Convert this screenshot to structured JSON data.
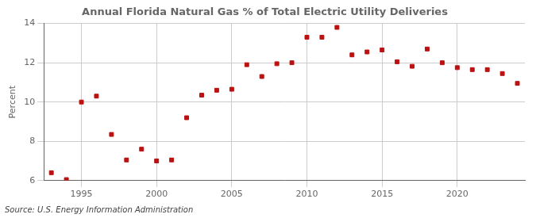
{
  "chart_data": {
    "type": "scatter",
    "title": "Annual Florida Natural Gas % of Total Electric Utility Deliveries",
    "ylabel": "Percent",
    "annotation": "Source: U.S. Energy Information Administration",
    "x": [
      1993,
      1994,
      1995,
      1996,
      1997,
      1998,
      1999,
      2000,
      2001,
      2002,
      2003,
      2004,
      2005,
      2006,
      2007,
      2008,
      2009,
      2010,
      2011,
      2012,
      2013,
      2014,
      2015,
      2016,
      2017,
      2018,
      2019,
      2020,
      2021,
      2022,
      2023,
      2024
    ],
    "values": [
      6.4,
      6.05,
      10.0,
      10.3,
      8.35,
      7.05,
      7.6,
      7.0,
      7.05,
      9.2,
      10.35,
      10.6,
      10.65,
      11.9,
      11.3,
      11.95,
      12.0,
      13.3,
      13.3,
      13.8,
      12.4,
      12.55,
      12.65,
      12.05,
      11.82,
      12.7,
      12.0,
      11.75,
      11.65,
      11.65,
      11.45,
      10.95
    ],
    "color": "#bb1111",
    "marker": "square",
    "xlim": [
      1992.5,
      2024.5
    ],
    "xticks": [
      1995,
      2000,
      2005,
      2010,
      2015,
      2020
    ],
    "ylim": [
      6,
      14
    ],
    "yticks": [
      6,
      8,
      10,
      12,
      14
    ],
    "grid": true
  }
}
